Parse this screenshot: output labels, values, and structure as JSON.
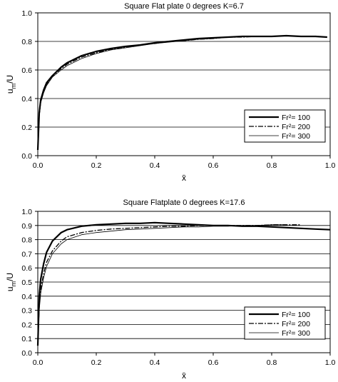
{
  "chart_data": [
    {
      "type": "line",
      "title": "Square Flat plate 0 degrees K=6.7",
      "xlabel": "x̄",
      "ylabel": "u_m/U",
      "xlim": [
        0.0,
        1.0
      ],
      "ylim": [
        0.0,
        1.0
      ],
      "xticks": [
        "0.0",
        "0.2",
        "0.4",
        "0.6",
        "0.8",
        "1.0"
      ],
      "yticks": [
        "0.0",
        "0.2",
        "0.4",
        "0.6",
        "0.8",
        "1.0"
      ],
      "grid": "horizontal",
      "legend": {
        "position": "bottom-right",
        "entries": [
          "Fr²= 100",
          "Fr²= 200",
          "Fr²= 300"
        ]
      },
      "series": [
        {
          "name": "Fr²= 100",
          "style": "solid-thick",
          "x": [
            0.0,
            0.005,
            0.01,
            0.02,
            0.03,
            0.05,
            0.08,
            0.1,
            0.15,
            0.2,
            0.25,
            0.3,
            0.35,
            0.4,
            0.45,
            0.5,
            0.55,
            0.6,
            0.65,
            0.7,
            0.75,
            0.8,
            0.85,
            0.9,
            0.95,
            0.99
          ],
          "y": [
            0.04,
            0.3,
            0.39,
            0.46,
            0.51,
            0.56,
            0.62,
            0.65,
            0.7,
            0.73,
            0.75,
            0.765,
            0.775,
            0.79,
            0.8,
            0.81,
            0.82,
            0.825,
            0.83,
            0.835,
            0.835,
            0.835,
            0.84,
            0.835,
            0.835,
            0.83
          ]
        },
        {
          "name": "Fr²= 200",
          "style": "dash-dot",
          "x": [
            0.0,
            0.005,
            0.01,
            0.02,
            0.03,
            0.05,
            0.08,
            0.1,
            0.15,
            0.2,
            0.25,
            0.3,
            0.35,
            0.4,
            0.45,
            0.5,
            0.55,
            0.6,
            0.65,
            0.7,
            0.75,
            0.77
          ],
          "y": [
            0.04,
            0.28,
            0.38,
            0.45,
            0.5,
            0.555,
            0.61,
            0.64,
            0.69,
            0.72,
            0.745,
            0.76,
            0.775,
            0.785,
            0.8,
            0.805,
            0.815,
            0.82,
            0.83,
            0.83,
            0.835,
            0.835
          ]
        },
        {
          "name": "Fr²= 300",
          "style": "solid-thin",
          "x": [
            0.0,
            0.005,
            0.01,
            0.02,
            0.03,
            0.05,
            0.08,
            0.1,
            0.15,
            0.2,
            0.25,
            0.3,
            0.35,
            0.4,
            0.45,
            0.5,
            0.55,
            0.6,
            0.65,
            0.7
          ],
          "y": [
            0.04,
            0.27,
            0.37,
            0.44,
            0.49,
            0.55,
            0.6,
            0.63,
            0.68,
            0.715,
            0.74,
            0.755,
            0.77,
            0.785,
            0.795,
            0.805,
            0.815,
            0.82,
            0.83,
            0.835
          ]
        }
      ]
    },
    {
      "type": "line",
      "title": "Square Flatplate 0 degrees K=17.6",
      "xlabel": "x̄",
      "ylabel": "u_m/U",
      "xlim": [
        0.0,
        1.0
      ],
      "ylim": [
        0.0,
        1.0
      ],
      "xticks": [
        "0.0",
        "0.2",
        "0.4",
        "0.6",
        "0.8",
        "1.0"
      ],
      "yticks": [
        "0.0",
        "0.1",
        "0.2",
        "0.3",
        "0.4",
        "0.5",
        "0.6",
        "0.7",
        "0.8",
        "0.9",
        "1.0"
      ],
      "grid": "horizontal",
      "legend": {
        "position": "bottom-right",
        "entries": [
          "Fr²= 100",
          "Fr²= 200",
          "Fr²= 300"
        ]
      },
      "series": [
        {
          "name": "Fr²= 100",
          "style": "solid-thick",
          "x": [
            0.0,
            0.005,
            0.01,
            0.02,
            0.03,
            0.05,
            0.08,
            0.1,
            0.15,
            0.2,
            0.25,
            0.3,
            0.35,
            0.4,
            0.45,
            0.5,
            0.55,
            0.6,
            0.65,
            0.7,
            0.75,
            0.8,
            0.85,
            0.9,
            0.95,
            1.0
          ],
          "y": [
            0.05,
            0.4,
            0.52,
            0.63,
            0.71,
            0.79,
            0.85,
            0.87,
            0.895,
            0.905,
            0.91,
            0.915,
            0.915,
            0.92,
            0.915,
            0.91,
            0.905,
            0.9,
            0.9,
            0.895,
            0.895,
            0.89,
            0.885,
            0.88,
            0.875,
            0.87
          ]
        },
        {
          "name": "Fr²= 200",
          "style": "dash-dot",
          "x": [
            0.0,
            0.005,
            0.01,
            0.02,
            0.03,
            0.05,
            0.08,
            0.1,
            0.15,
            0.2,
            0.25,
            0.3,
            0.35,
            0.4,
            0.45,
            0.5,
            0.55,
            0.6,
            0.65,
            0.7,
            0.75,
            0.8,
            0.85,
            0.9
          ],
          "y": [
            0.05,
            0.33,
            0.45,
            0.56,
            0.64,
            0.72,
            0.79,
            0.82,
            0.85,
            0.865,
            0.875,
            0.88,
            0.885,
            0.89,
            0.895,
            0.895,
            0.9,
            0.9,
            0.9,
            0.9,
            0.9,
            0.905,
            0.905,
            0.905
          ]
        },
        {
          "name": "Fr²= 300",
          "style": "solid-thin",
          "x": [
            0.0,
            0.005,
            0.01,
            0.02,
            0.03,
            0.05,
            0.08,
            0.1,
            0.15,
            0.2,
            0.25,
            0.3,
            0.35,
            0.4,
            0.45,
            0.5,
            0.55,
            0.6,
            0.65,
            0.7,
            0.75,
            0.8,
            0.85
          ],
          "y": [
            0.05,
            0.3,
            0.42,
            0.53,
            0.61,
            0.7,
            0.77,
            0.8,
            0.835,
            0.85,
            0.86,
            0.87,
            0.875,
            0.88,
            0.885,
            0.89,
            0.89,
            0.895,
            0.895,
            0.9,
            0.9,
            0.905,
            0.905
          ]
        }
      ]
    }
  ]
}
